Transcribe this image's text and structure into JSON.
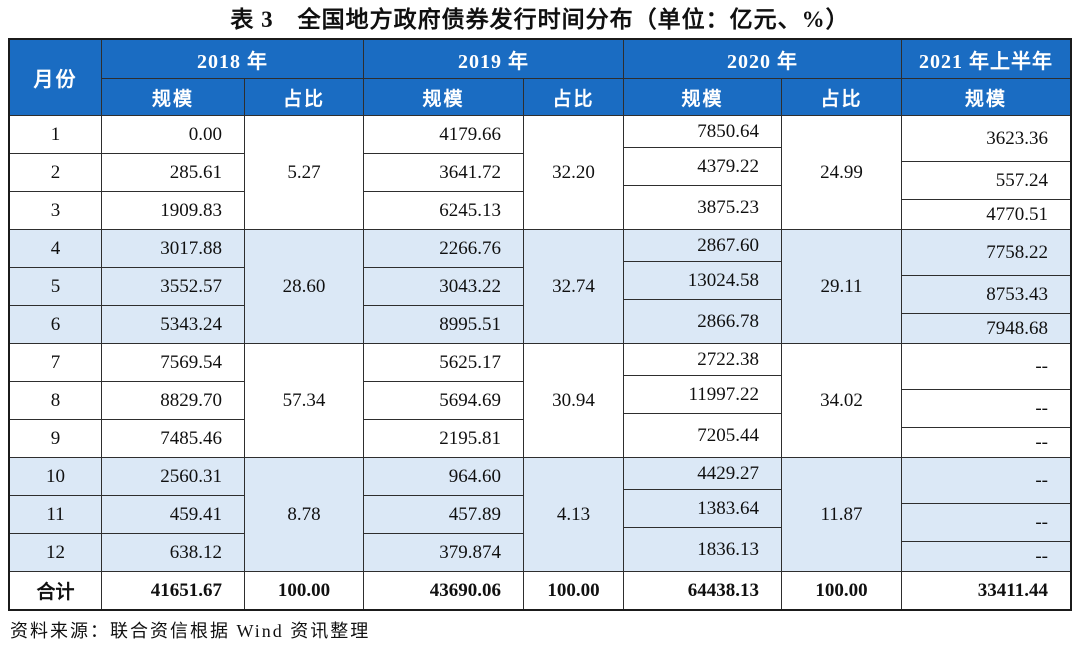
{
  "title": "表 3　全国地方政府债券发行时间分布（单位：亿元、%）",
  "source_note": "资料来源：联合资信根据 Wind 资讯整理",
  "colors": {
    "header_bg": "#1a6cc2",
    "header_text": "#ffffff",
    "band_blue": "#dbe8f6",
    "band_white": "#ffffff",
    "border": "#2e2e2e",
    "text": "#101010"
  },
  "table": {
    "month_header": "月份",
    "years": [
      "2018 年",
      "2019 年",
      "2020 年",
      "2021 年上半年"
    ],
    "sub_scale": "规模",
    "sub_share": "占比",
    "groups": [
      {
        "months": [
          "1",
          "2",
          "3"
        ],
        "s2018": [
          "0.00",
          "285.61",
          "1909.83"
        ],
        "p2018": "5.27",
        "s2019": [
          "4179.66",
          "3641.72",
          "6245.13"
        ],
        "p2019": "32.20",
        "s2020": [
          "7850.64",
          "4379.22",
          "3875.23"
        ],
        "p2020": "24.99",
        "s2021": [
          "3623.36",
          "557.24",
          "4770.51"
        ]
      },
      {
        "months": [
          "4",
          "5",
          "6"
        ],
        "s2018": [
          "3017.88",
          "3552.57",
          "5343.24"
        ],
        "p2018": "28.60",
        "s2019": [
          "2266.76",
          "3043.22",
          "8995.51"
        ],
        "p2019": "32.74",
        "s2020": [
          "2867.60",
          "13024.58",
          "2866.78"
        ],
        "p2020": "29.11",
        "s2021": [
          "7758.22",
          "8753.43",
          "7948.68"
        ]
      },
      {
        "months": [
          "7",
          "8",
          "9"
        ],
        "s2018": [
          "7569.54",
          "8829.70",
          "7485.46"
        ],
        "p2018": "57.34",
        "s2019": [
          "5625.17",
          "5694.69",
          "2195.81"
        ],
        "p2019": "30.94",
        "s2020": [
          "2722.38",
          "11997.22",
          "7205.44"
        ],
        "p2020": "34.02",
        "s2021": [
          "--",
          "--",
          "--"
        ]
      },
      {
        "months": [
          "10",
          "11",
          "12"
        ],
        "s2018": [
          "2560.31",
          "459.41",
          "638.12"
        ],
        "p2018": "8.78",
        "s2019": [
          "964.60",
          "457.89",
          "379.874"
        ],
        "p2019": "4.13",
        "s2020": [
          "4429.27",
          "1383.64",
          "1836.13"
        ],
        "p2020": "11.87",
        "s2021": [
          "--",
          "--",
          "--"
        ]
      }
    ],
    "totals": {
      "label": "合计",
      "s2018": "41651.67",
      "p2018": "100.00",
      "s2019": "43690.06",
      "p2019": "100.00",
      "s2020": "64438.13",
      "p2020": "100.00",
      "s2021": "33411.44"
    }
  }
}
